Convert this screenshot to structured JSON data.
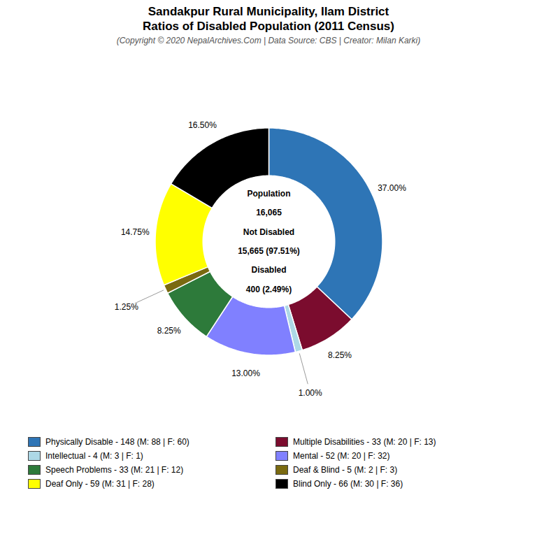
{
  "chart_data": {
    "type": "donut",
    "title": "Sandakpur Rural Municipality, Ilam District\nRatios of Disabled Population (2011 Census)",
    "subtitle": "(Copyright © 2020 NepalArchives.Com | Data Source: CBS | Creator: Milan Karki)",
    "categories": [
      "Physically Disable - 148 (M: 88 | F: 60)",
      "Multiple Disabilities - 33 (M: 20 | F: 13)",
      "Intellectual - 4 (M: 3 | F: 1)",
      "Mental - 52 (M: 20 | F: 32)",
      "Speech Problems - 33 (M: 21 | F: 12)",
      "Deaf & Blind - 5 (M: 2 | F: 3)",
      "Deaf Only - 59 (M: 31 | F: 28)",
      "Blind Only - 66 (M: 30 | F: 36)"
    ],
    "values": [
      37.0,
      8.25,
      1.0,
      13.0,
      8.25,
      1.25,
      14.75,
      16.5
    ],
    "value_labels": [
      "37.00%",
      "8.25%",
      "1.00%",
      "13.00%",
      "8.25%",
      "1.25%",
      "14.75%",
      "16.50%"
    ],
    "colors": [
      "#2e75b6",
      "#7b0c2e",
      "#add8e6",
      "#8080ff",
      "#2d7a3a",
      "#7a6a10",
      "#ffff00",
      "#000000"
    ],
    "data_labels": true,
    "legend": "bottom",
    "annotations": [
      "Population",
      "16,065",
      "Not Disabled",
      "15,665 (97.51%)",
      "Disabled",
      "400 (2.49%)"
    ]
  }
}
